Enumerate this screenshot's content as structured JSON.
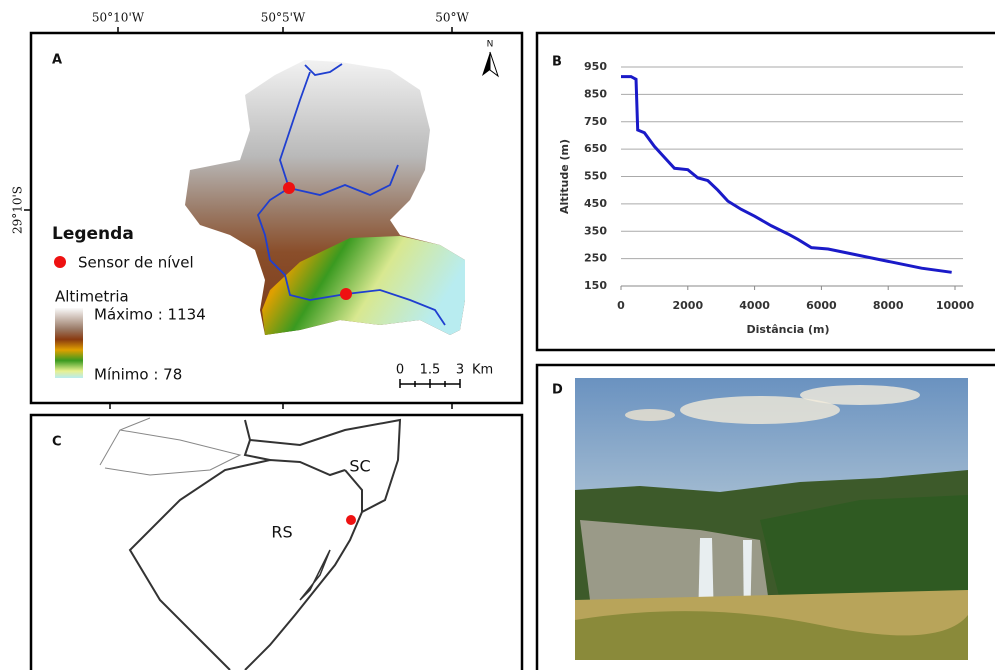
{
  "coordinates": {
    "lon_labels": [
      "50°10'W",
      "50°5'W",
      "50°W"
    ],
    "lat_label": "29°10'S"
  },
  "panel_a": {
    "label": "A",
    "north": "N",
    "legend": {
      "title": "Legenda",
      "sensor": "Sensor de nível",
      "altimetry": "Altimetria",
      "max": "Máximo : 1134",
      "min": "Mínimo : 78"
    },
    "scale": {
      "labels": [
        "0",
        "1.5",
        "3"
      ],
      "unit": "Km"
    }
  },
  "panel_c": {
    "label": "C",
    "states": [
      "RS",
      "SC"
    ]
  },
  "panel_d": {
    "label": "D"
  },
  "chart_data": {
    "type": "line",
    "panel_label": "B",
    "xlabel": "Distância (m)",
    "ylabel": "Altitude (m)",
    "x": [
      0,
      300,
      450,
      500,
      700,
      1000,
      1300,
      1600,
      2000,
      2300,
      2600,
      2900,
      3200,
      3600,
      4000,
      4500,
      5000,
      5300,
      5700,
      6200,
      7000,
      8000,
      9000,
      9900
    ],
    "series": [
      {
        "color": "#1a1ac8",
        "values": [
          915,
          915,
          905,
          720,
          710,
          660,
          620,
          580,
          575,
          545,
          535,
          500,
          460,
          430,
          405,
          370,
          340,
          320,
          290,
          285,
          265,
          240,
          215,
          200
        ]
      }
    ],
    "xlim": [
      0,
      10000
    ],
    "ylim": [
      150,
      950
    ],
    "xticks": [
      0,
      2000,
      4000,
      6000,
      8000,
      10000
    ],
    "yticks": [
      150,
      250,
      350,
      450,
      550,
      650,
      750,
      850,
      950
    ],
    "grid": true
  }
}
